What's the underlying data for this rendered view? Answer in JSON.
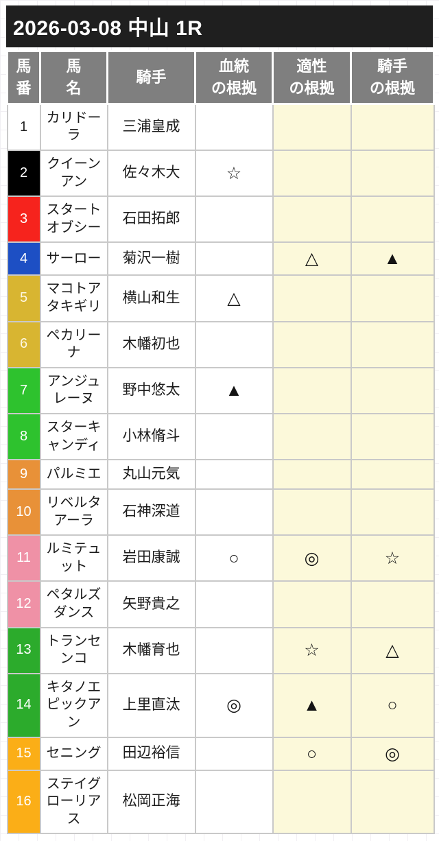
{
  "title": "2026-03-08 中山 1R",
  "colors": {
    "title_bg": "#1f1f1f",
    "header_bg": "#7f7f7f",
    "highlight_bg": "#fcf9da",
    "grid_border": "#c9c9c9"
  },
  "table": {
    "headers": [
      "馬\n番",
      "馬\n名",
      "騎手",
      "血統\nの根拠",
      "適性\nの根拠",
      "騎手\nの根拠"
    ],
    "rows": [
      {
        "num": "1",
        "name": "カリドーラ",
        "jockey": "三浦皇成",
        "blood": "",
        "aptitude": "",
        "jockey_mark": "",
        "frame_color": "#ffffff",
        "num_text_color": "#222222"
      },
      {
        "num": "2",
        "name": "クイーンアン",
        "jockey": "佐々木大",
        "blood": "☆",
        "aptitude": "",
        "jockey_mark": "",
        "frame_color": "#000000",
        "num_text_color": "#ffffff"
      },
      {
        "num": "3",
        "name": "スタートオブシー",
        "jockey": "石田拓郎",
        "blood": "",
        "aptitude": "",
        "jockey_mark": "",
        "frame_color": "#f6231d",
        "num_text_color": "#ffffff"
      },
      {
        "num": "4",
        "name": "サーロー",
        "jockey": "菊沢一樹",
        "blood": "",
        "aptitude": "△",
        "jockey_mark": "▲",
        "frame_color": "#1d4fc4",
        "num_text_color": "#ffffff"
      },
      {
        "num": "5",
        "name": "マコトアタキギリ",
        "jockey": "横山和生",
        "blood": "△",
        "aptitude": "",
        "jockey_mark": "",
        "frame_color": "#d8b531",
        "num_text_color": "#fdf6e0"
      },
      {
        "num": "6",
        "name": "ペカリーナ",
        "jockey": "木幡初也",
        "blood": "",
        "aptitude": "",
        "jockey_mark": "",
        "frame_color": "#d8b531",
        "num_text_color": "#fdf6e0"
      },
      {
        "num": "7",
        "name": "アンジュレーヌ",
        "jockey": "野中悠太",
        "blood": "▲",
        "aptitude": "",
        "jockey_mark": "",
        "frame_color": "#2ec22e",
        "num_text_color": "#ffffff"
      },
      {
        "num": "8",
        "name": "スターキャンディ",
        "jockey": "小林脩斗",
        "blood": "",
        "aptitude": "",
        "jockey_mark": "",
        "frame_color": "#2ec22e",
        "num_text_color": "#ffffff"
      },
      {
        "num": "9",
        "name": "パルミエ",
        "jockey": "丸山元気",
        "blood": "",
        "aptitude": "",
        "jockey_mark": "",
        "frame_color": "#e89138",
        "num_text_color": "#ffffff"
      },
      {
        "num": "10",
        "name": "リベルタアーラ",
        "jockey": "石神深道",
        "blood": "",
        "aptitude": "",
        "jockey_mark": "",
        "frame_color": "#e89138",
        "num_text_color": "#ffffff"
      },
      {
        "num": "11",
        "name": "ルミテュット",
        "jockey": "岩田康誠",
        "blood": "○",
        "aptitude": "◎",
        "jockey_mark": "☆",
        "frame_color": "#ef91a6",
        "num_text_color": "#ffffff"
      },
      {
        "num": "12",
        "name": "ペタルズダンス",
        "jockey": "矢野貴之",
        "blood": "",
        "aptitude": "",
        "jockey_mark": "",
        "frame_color": "#ef91a6",
        "num_text_color": "#ffffff"
      },
      {
        "num": "13",
        "name": "トランセンコ",
        "jockey": "木幡育也",
        "blood": "",
        "aptitude": "☆",
        "jockey_mark": "△",
        "frame_color": "#2cab2c",
        "num_text_color": "#ffffff"
      },
      {
        "num": "14",
        "name": "キタノエピックアン",
        "jockey": "上里直汰",
        "blood": "◎",
        "aptitude": "▲",
        "jockey_mark": "○",
        "frame_color": "#2cab2c",
        "num_text_color": "#ffffff"
      },
      {
        "num": "15",
        "name": "セニング",
        "jockey": "田辺裕信",
        "blood": "",
        "aptitude": "○",
        "jockey_mark": "◎",
        "frame_color": "#fbae17",
        "num_text_color": "#ffffff"
      },
      {
        "num": "16",
        "name": "ステイグローリアス",
        "jockey": "松岡正海",
        "blood": "",
        "aptitude": "",
        "jockey_mark": "",
        "frame_color": "#fbae17",
        "num_text_color": "#ffffff"
      }
    ]
  }
}
